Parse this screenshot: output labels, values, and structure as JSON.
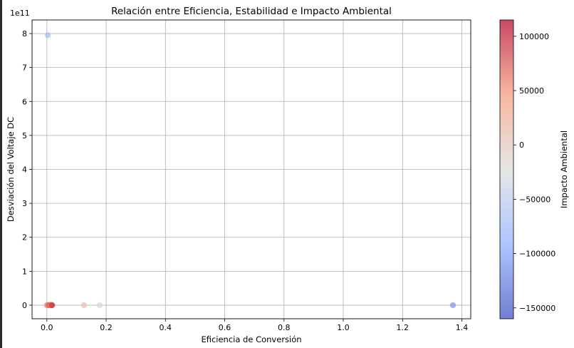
{
  "chart_data": {
    "type": "scatter",
    "title": "Relación entre Eficiencia, Estabilidad e Impacto Ambiental",
    "xlabel": "Eficiencia de Conversión",
    "ylabel": "Desviación del Voltaje DC",
    "y_offset_text": "1e11",
    "xlim": [
      -0.05,
      1.43
    ],
    "ylim": [
      -0.4,
      8.4
    ],
    "y_scale_note": "values in units of 1e11",
    "grid": true,
    "x_ticks": [
      "0.0",
      "0.2",
      "0.4",
      "0.6",
      "0.8",
      "1.0",
      "1.2",
      "1.4"
    ],
    "x_tick_values": [
      0.0,
      0.2,
      0.4,
      0.6,
      0.8,
      1.0,
      1.2,
      1.4
    ],
    "y_ticks": [
      "0",
      "1",
      "2",
      "3",
      "4",
      "5",
      "6",
      "7",
      "8"
    ],
    "y_tick_values": [
      0,
      1,
      2,
      3,
      4,
      5,
      6,
      7,
      8
    ],
    "points": [
      {
        "x": 0.003,
        "y": 7.95,
        "c": -70000
      },
      {
        "x": 1.37,
        "y": 0.0,
        "c": -110000
      },
      {
        "x": 0.125,
        "y": 0.0,
        "c": 10000
      },
      {
        "x": 0.178,
        "y": 0.0,
        "c": -15000
      },
      {
        "x": 0.0,
        "y": 0.0,
        "c": 30000
      },
      {
        "x": 0.002,
        "y": 0.0,
        "c": 40000
      },
      {
        "x": 0.004,
        "y": 0.0,
        "c": 60000
      },
      {
        "x": 0.006,
        "y": 0.0,
        "c": 50000
      },
      {
        "x": 0.008,
        "y": 0.0,
        "c": 80000
      },
      {
        "x": 0.01,
        "y": 0.0,
        "c": 70000
      },
      {
        "x": 0.012,
        "y": 0.0,
        "c": 55000
      },
      {
        "x": 0.014,
        "y": 0.0,
        "c": 65000
      },
      {
        "x": 0.016,
        "y": 0.0,
        "c": 75000
      },
      {
        "x": 0.018,
        "y": 0.0,
        "c": 90000
      }
    ],
    "colorbar": {
      "label": "Impacto Ambiental",
      "min": -160000,
      "max": 115000,
      "ticks": [
        -150000,
        -100000,
        -50000,
        0,
        50000,
        100000
      ],
      "tick_labels": [
        "−150000",
        "−100000",
        "−50000",
        "0",
        "50000",
        "100000"
      ],
      "colormap": "coolwarm"
    }
  }
}
